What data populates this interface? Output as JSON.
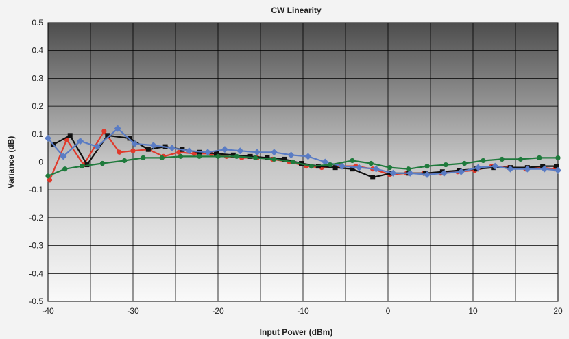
{
  "chart_data": {
    "type": "line",
    "title": "CW Linearity",
    "xlabel": "Input Power (dBm)",
    "ylabel": "Variance (dB)",
    "xlim": [
      -40,
      20
    ],
    "ylim": [
      -0.5,
      0.5
    ],
    "x_ticks": [
      -40,
      -30,
      -20,
      -10,
      0,
      10,
      20
    ],
    "y_ticks": [
      -0.5,
      -0.4,
      -0.3,
      -0.2,
      -0.1,
      0,
      0.1,
      0.2,
      0.3,
      0.4,
      0.5
    ],
    "y_tick_labels": [
      "-0.5",
      "-0.4",
      "-0.3",
      "-0.2",
      "-0.1",
      "0",
      "0.1",
      "0.2",
      "0.3",
      "0.4",
      "0.5"
    ],
    "grid": true,
    "legend": "none",
    "series": [
      {
        "color": "#e03a2c",
        "marker": "circle",
        "points": [
          [
            -39.8,
            -0.065
          ],
          [
            -37.8,
            0.08
          ],
          [
            -35.8,
            -0.01
          ],
          [
            -33.4,
            0.11
          ],
          [
            -31.6,
            0.035
          ],
          [
            -30,
            0.04
          ],
          [
            -28.2,
            0.045
          ],
          [
            -26.4,
            0.02
          ],
          [
            -24.6,
            0.035
          ],
          [
            -22.8,
            0.03
          ],
          [
            -20.8,
            0.03
          ],
          [
            -19,
            0.02
          ],
          [
            -17.2,
            0.015
          ],
          [
            -15.4,
            0.015
          ],
          [
            -13.6,
            0.01
          ],
          [
            -11.6,
            0.0
          ],
          [
            -9.6,
            -0.015
          ],
          [
            -7.8,
            -0.02
          ],
          [
            -5.8,
            -0.015
          ],
          [
            -3.8,
            -0.015
          ],
          [
            -1.8,
            -0.025
          ],
          [
            0.2,
            -0.045
          ],
          [
            2.2,
            -0.04
          ],
          [
            4.2,
            -0.04
          ],
          [
            6.2,
            -0.04
          ],
          [
            8.2,
            -0.035
          ],
          [
            10.2,
            -0.03
          ],
          [
            12.2,
            -0.015
          ],
          [
            14.2,
            -0.02
          ],
          [
            16.2,
            -0.025
          ],
          [
            18.2,
            -0.02
          ],
          [
            19.6,
            -0.025
          ]
        ]
      },
      {
        "color": "#111111",
        "marker": "square",
        "points": [
          [
            -39.4,
            0.062
          ],
          [
            -37.4,
            0.095
          ],
          [
            -35.4,
            -0.01
          ],
          [
            -33.0,
            0.095
          ],
          [
            -30.4,
            0.085
          ],
          [
            -28.2,
            0.045
          ],
          [
            -26.2,
            0.055
          ],
          [
            -24.2,
            0.045
          ],
          [
            -22.2,
            0.035
          ],
          [
            -20.2,
            0.03
          ],
          [
            -18.2,
            0.025
          ],
          [
            -16.2,
            0.02
          ],
          [
            -14.2,
            0.015
          ],
          [
            -12.2,
            0.01
          ],
          [
            -10.2,
            -0.005
          ],
          [
            -8.2,
            -0.015
          ],
          [
            -6.2,
            -0.02
          ],
          [
            -4.2,
            -0.025
          ],
          [
            -1.8,
            -0.055
          ],
          [
            0.4,
            -0.04
          ],
          [
            2.4,
            -0.04
          ],
          [
            4.4,
            -0.04
          ],
          [
            6.4,
            -0.035
          ],
          [
            8.4,
            -0.03
          ],
          [
            10.4,
            -0.025
          ],
          [
            12.4,
            -0.02
          ],
          [
            14.4,
            -0.02
          ],
          [
            16.4,
            -0.02
          ],
          [
            18.2,
            -0.015
          ],
          [
            19.8,
            -0.015
          ]
        ]
      },
      {
        "color": "#5a7cc4",
        "marker": "diamond",
        "points": [
          [
            -40,
            0.085
          ],
          [
            -38.2,
            0.02
          ],
          [
            -36.2,
            0.075
          ],
          [
            -34.2,
            0.055
          ],
          [
            -31.8,
            0.12
          ],
          [
            -29.8,
            0.065
          ],
          [
            -27.6,
            0.06
          ],
          [
            -25.4,
            0.05
          ],
          [
            -23.4,
            0.04
          ],
          [
            -21.2,
            0.035
          ],
          [
            -19.2,
            0.045
          ],
          [
            -17.4,
            0.04
          ],
          [
            -15.4,
            0.035
          ],
          [
            -13.4,
            0.035
          ],
          [
            -11.4,
            0.025
          ],
          [
            -9.4,
            0.02
          ],
          [
            -7.4,
            0.0
          ],
          [
            -5.4,
            -0.015
          ],
          [
            -3.4,
            -0.02
          ],
          [
            -1.4,
            -0.025
          ],
          [
            0.6,
            -0.04
          ],
          [
            2.6,
            -0.04
          ],
          [
            4.6,
            -0.045
          ],
          [
            6.6,
            -0.04
          ],
          [
            8.6,
            -0.035
          ],
          [
            10.6,
            -0.02
          ],
          [
            12.6,
            -0.015
          ],
          [
            14.4,
            -0.025
          ],
          [
            16.4,
            -0.025
          ],
          [
            18.4,
            -0.025
          ],
          [
            20,
            -0.03
          ]
        ]
      },
      {
        "color": "#1f7a3c",
        "marker": "circle",
        "points": [
          [
            -40,
            -0.05
          ],
          [
            -38,
            -0.025
          ],
          [
            -36,
            -0.015
          ],
          [
            -33.6,
            -0.005
          ],
          [
            -31,
            0.005
          ],
          [
            -28.8,
            0.015
          ],
          [
            -26.6,
            0.015
          ],
          [
            -24.4,
            0.02
          ],
          [
            -22.2,
            0.02
          ],
          [
            -20,
            0.02
          ],
          [
            -17.8,
            0.02
          ],
          [
            -15.6,
            0.015
          ],
          [
            -13.4,
            0.01
          ],
          [
            -11.2,
            0.0
          ],
          [
            -9.0,
            -0.015
          ],
          [
            -6.8,
            -0.01
          ],
          [
            -4.2,
            0.005
          ],
          [
            -2.0,
            -0.005
          ],
          [
            0.2,
            -0.02
          ],
          [
            2.4,
            -0.025
          ],
          [
            4.6,
            -0.015
          ],
          [
            6.8,
            -0.01
          ],
          [
            9.0,
            -0.005
          ],
          [
            11.2,
            0.005
          ],
          [
            13.4,
            0.01
          ],
          [
            15.6,
            0.01
          ],
          [
            17.8,
            0.015
          ],
          [
            20,
            0.015
          ]
        ]
      }
    ]
  }
}
